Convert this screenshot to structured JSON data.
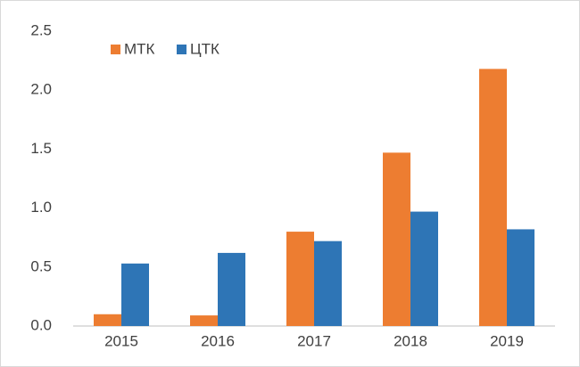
{
  "chart_data": {
    "type": "bar",
    "categories": [
      "2015",
      "2016",
      "2017",
      "2018",
      "2019"
    ],
    "series": [
      {
        "name": "МТК",
        "color": "#ed7d31",
        "values": [
          0.1,
          0.09,
          0.8,
          1.47,
          2.18
        ]
      },
      {
        "name": "ЦТК",
        "color": "#2e75b6",
        "values": [
          0.53,
          0.62,
          0.72,
          0.97,
          0.82
        ]
      }
    ],
    "ylim": [
      0,
      2.5
    ],
    "yticks": [
      {
        "value": 0,
        "label": "0.0"
      },
      0.5,
      {
        "value": 1,
        "label": "1.0"
      },
      1.5,
      {
        "value": 2,
        "label": "2.0"
      },
      2.5
    ],
    "grid": false,
    "legend": "top-left"
  }
}
